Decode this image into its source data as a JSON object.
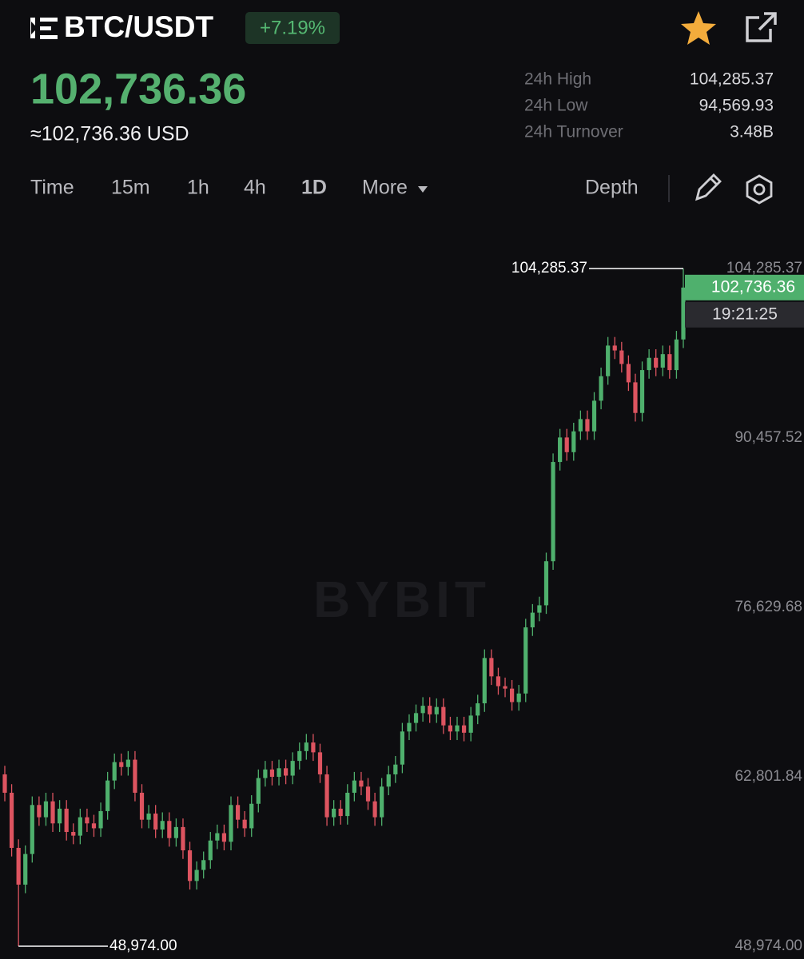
{
  "header": {
    "pair": "BTC/USDT",
    "change": "+7.19%",
    "price": "102,736.36",
    "usd_price": "≈102,736.36 USD",
    "stats": [
      {
        "label": "24h High",
        "value": "104,285.37"
      },
      {
        "label": "24h Low",
        "value": "94,569.93"
      },
      {
        "label": "24h Turnover",
        "value": "3.48B"
      }
    ]
  },
  "tabs": {
    "items": [
      "Time",
      "15m",
      "1h",
      "4h",
      "1D",
      "More"
    ],
    "active": 4,
    "depth": "Depth"
  },
  "chart_data": {
    "type": "candlestick",
    "watermark": "BYBIT",
    "up_color": "#4fb06d",
    "down_color": "#dd5460",
    "ylim": [
      47930,
      107290
    ],
    "yticks": [
      {
        "value": 104285.37,
        "label": "104,285.37"
      },
      {
        "value": 90457.52,
        "label": "90,457.52"
      },
      {
        "value": 76629.68,
        "label": "76,629.68"
      },
      {
        "value": 62801.84,
        "label": "62,801.84"
      },
      {
        "value": 48974,
        "label": "48,974.00"
      }
    ],
    "max_marker": {
      "value": 104285.37,
      "label": "104,285.37"
    },
    "min_marker": {
      "value": 48974,
      "label": "48,974.00"
    },
    "last_price": {
      "value": 102736.36,
      "label": "102,736.36"
    },
    "countdown": "19:21:25",
    "open": [
      63000,
      61500,
      57000,
      54000,
      56500,
      60500,
      59500,
      60800,
      59000,
      60200,
      58300,
      58000,
      59500,
      59000,
      58600,
      60000,
      62500,
      64000,
      63600,
      64200,
      61500,
      59300,
      59800,
      58500,
      59200,
      57800,
      58700,
      56800,
      54300,
      55200,
      56000,
      57600,
      58200,
      57500,
      60500,
      59300,
      58600,
      60600,
      62700,
      63400,
      62800,
      63500,
      62900,
      64100,
      64900,
      65600,
      64800,
      63000,
      59500,
      60200,
      59600,
      61500,
      62500,
      62000,
      60800,
      59500,
      62000,
      63000,
      63800,
      66500,
      67200,
      68000,
      68600,
      67900,
      68500,
      67000,
      66500,
      67000,
      66400,
      67800,
      68800,
      72500,
      71000,
      70200,
      70000,
      68900,
      69600,
      75000,
      76200,
      76800,
      80400,
      88500,
      90500,
      89300,
      91000,
      92000,
      91000,
      93500,
      95500,
      98000,
      97600,
      96500,
      95000,
      92500,
      96000,
      97000,
      96200,
      97300,
      96000,
      98500
    ],
    "high": [
      63700,
      62200,
      57700,
      57200,
      61200,
      61200,
      61500,
      61500,
      60900,
      60900,
      59000,
      60200,
      60200,
      59700,
      60700,
      63200,
      64700,
      64700,
      64900,
      64900,
      62200,
      60500,
      60500,
      59900,
      59900,
      59400,
      59400,
      57500,
      55900,
      56700,
      58300,
      58900,
      58900,
      61200,
      61200,
      60000,
      61300,
      63400,
      64100,
      64100,
      64200,
      64200,
      64800,
      65600,
      66300,
      66300,
      65500,
      63700,
      60900,
      60900,
      62200,
      63200,
      63200,
      62700,
      61500,
      62700,
      63700,
      64500,
      67200,
      67900,
      68700,
      69300,
      69300,
      69200,
      69200,
      67700,
      67700,
      67700,
      68500,
      69500,
      73200,
      73200,
      71700,
      70900,
      70700,
      70300,
      75700,
      76900,
      77500,
      81100,
      89200,
      91200,
      91200,
      91700,
      92700,
      92700,
      94200,
      96200,
      98700,
      98700,
      98300,
      97200,
      95700,
      96700,
      97700,
      97700,
      98000,
      98000,
      99200,
      104285.37
    ],
    "low": [
      60800,
      56300,
      48974,
      53300,
      55800,
      58800,
      58800,
      58300,
      58300,
      57600,
      57300,
      57300,
      58300,
      57900,
      57900,
      59300,
      61800,
      62900,
      62900,
      60800,
      58600,
      58600,
      57800,
      57800,
      57100,
      57100,
      56100,
      53600,
      53600,
      54500,
      55300,
      56900,
      56800,
      56800,
      58600,
      57900,
      57900,
      59900,
      62000,
      62100,
      62100,
      62200,
      62200,
      63400,
      64200,
      64100,
      62300,
      58800,
      58800,
      58900,
      58900,
      60800,
      61300,
      60100,
      58800,
      58800,
      61300,
      62300,
      63100,
      65800,
      66500,
      67300,
      67200,
      67200,
      66300,
      65800,
      65800,
      65700,
      65700,
      67100,
      68100,
      70300,
      69500,
      69300,
      68200,
      68200,
      68900,
      74300,
      75500,
      76100,
      79700,
      87800,
      88600,
      88600,
      90300,
      90300,
      90300,
      92800,
      94800,
      96900,
      95800,
      94300,
      91800,
      91800,
      95300,
      95500,
      95500,
      95300,
      95300,
      97800
    ],
    "close": [
      61500,
      57000,
      54000,
      56500,
      60500,
      59500,
      60800,
      59000,
      60200,
      58300,
      58000,
      59500,
      59000,
      58600,
      60000,
      62500,
      64000,
      63600,
      64200,
      61500,
      59300,
      59800,
      58500,
      59200,
      57800,
      58700,
      56800,
      54300,
      55200,
      56000,
      57600,
      58200,
      57500,
      60500,
      59300,
      58600,
      60600,
      62700,
      63400,
      62800,
      63500,
      62900,
      64100,
      64900,
      65600,
      64800,
      63000,
      59500,
      60200,
      59600,
      61500,
      62500,
      62000,
      60800,
      59500,
      62000,
      63000,
      63800,
      66500,
      67200,
      68000,
      68600,
      67900,
      68500,
      67000,
      66500,
      67000,
      66400,
      67800,
      68800,
      72500,
      71000,
      70200,
      70000,
      68900,
      69600,
      75000,
      76200,
      76800,
      80400,
      88500,
      90500,
      89300,
      91000,
      92000,
      91000,
      93500,
      95500,
      98000,
      97600,
      96500,
      95000,
      92500,
      96000,
      97000,
      96200,
      97300,
      96000,
      98500,
      102736.36
    ]
  }
}
